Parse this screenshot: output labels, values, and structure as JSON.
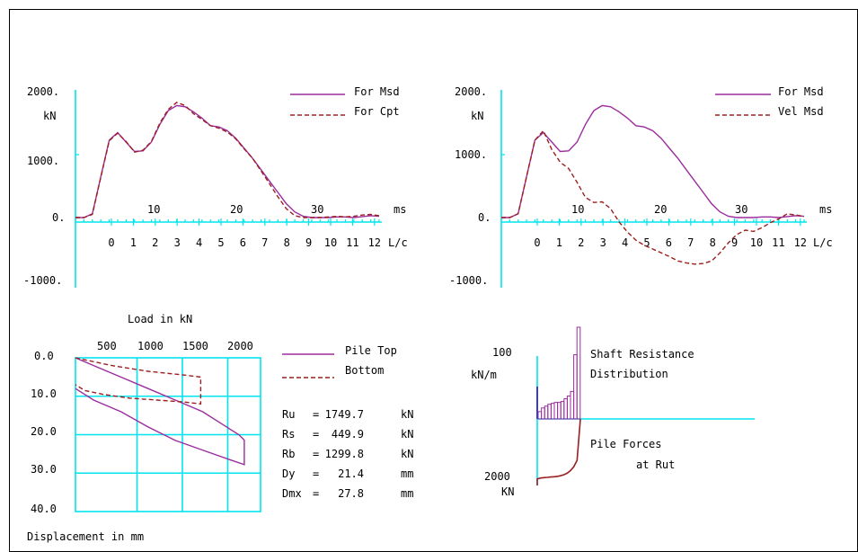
{
  "colors": {
    "axis": "#00e5ee",
    "measured": "#9b2c9e",
    "computed": "#9a1f1f"
  },
  "chart_data": [
    {
      "type": "line",
      "title": "",
      "ylabel": "kN",
      "xlabel": "ms",
      "y_ticks": [
        "2000.",
        "1000.",
        "0.",
        "-1000."
      ],
      "ylim": [
        -1000,
        2000
      ],
      "xlim": [
        0,
        36
      ],
      "time_ticks": [
        "10",
        "20",
        "30"
      ],
      "lc_ticks": [
        "0",
        "1",
        "2",
        "3",
        "4",
        "5",
        "6",
        "7",
        "8",
        "9",
        "10",
        "11",
        "12"
      ],
      "lc_unit": "L/c",
      "series": [
        {
          "name": "For  Msd",
          "style": "solid",
          "x": [
            0,
            1,
            2,
            3,
            4,
            5,
            6,
            7,
            8,
            9,
            10,
            11,
            12,
            13,
            14,
            15,
            16,
            17,
            18,
            19,
            20,
            21,
            22,
            23,
            24,
            25,
            26,
            27,
            28,
            29,
            30,
            31,
            32,
            33,
            34,
            35,
            36
          ],
          "y": [
            0,
            0,
            60,
            650,
            1230,
            1350,
            1200,
            1050,
            1060,
            1200,
            1480,
            1700,
            1780,
            1760,
            1680,
            1580,
            1460,
            1440,
            1380,
            1260,
            1100,
            940,
            760,
            580,
            400,
            220,
            90,
            20,
            0,
            0,
            0,
            10,
            10,
            0,
            15,
            30,
            20
          ]
        },
        {
          "name": "For  Cpt",
          "style": "dashed",
          "x": [
            0,
            1,
            2,
            3,
            4,
            5,
            6,
            7,
            8,
            9,
            10,
            11,
            12,
            13,
            14,
            15,
            16,
            17,
            18,
            19,
            20,
            21,
            22,
            23,
            24,
            25,
            26,
            27,
            28,
            29,
            30,
            31,
            32,
            33,
            34,
            35,
            36
          ],
          "y": [
            0,
            0,
            50,
            640,
            1220,
            1340,
            1210,
            1040,
            1070,
            1210,
            1500,
            1720,
            1830,
            1780,
            1650,
            1560,
            1460,
            1420,
            1360,
            1250,
            1090,
            940,
            740,
            540,
            330,
            140,
            30,
            0,
            0,
            0,
            10,
            20,
            10,
            20,
            40,
            50,
            30
          ]
        }
      ]
    },
    {
      "type": "line",
      "title": "",
      "ylabel": "kN",
      "xlabel": "ms",
      "y_ticks": [
        "2000.",
        "1000.",
        "0.",
        "-1000."
      ],
      "ylim": [
        -1000,
        2000
      ],
      "xlim": [
        0,
        36
      ],
      "time_ticks": [
        "10",
        "20",
        "30"
      ],
      "lc_ticks": [
        "0",
        "1",
        "2",
        "3",
        "4",
        "5",
        "6",
        "7",
        "8",
        "9",
        "10",
        "11",
        "12"
      ],
      "lc_unit": "L/c",
      "series": [
        {
          "name": "For  Msd",
          "style": "solid",
          "x": [
            0,
            1,
            2,
            3,
            4,
            5,
            6,
            7,
            8,
            9,
            10,
            11,
            12,
            13,
            14,
            15,
            16,
            17,
            18,
            19,
            20,
            21,
            22,
            23,
            24,
            25,
            26,
            27,
            28,
            29,
            30,
            31,
            32,
            33,
            34,
            35,
            36
          ],
          "y": [
            0,
            0,
            60,
            650,
            1230,
            1350,
            1200,
            1050,
            1060,
            1200,
            1480,
            1700,
            1780,
            1760,
            1680,
            1580,
            1460,
            1440,
            1380,
            1260,
            1100,
            940,
            760,
            580,
            400,
            220,
            90,
            20,
            0,
            0,
            0,
            10,
            10,
            0,
            15,
            30,
            20
          ]
        },
        {
          "name": "Vel  Msd",
          "style": "dashed",
          "x": [
            0,
            1,
            2,
            3,
            4,
            5,
            6,
            7,
            8,
            9,
            10,
            11,
            12,
            13,
            14,
            15,
            16,
            17,
            18,
            19,
            20,
            21,
            22,
            23,
            24,
            25,
            26,
            27,
            28,
            29,
            30,
            31,
            32,
            33,
            34,
            35,
            36
          ],
          "y": [
            0,
            0,
            60,
            650,
            1230,
            1380,
            1080,
            880,
            780,
            560,
            320,
            240,
            250,
            140,
            -70,
            -230,
            -360,
            -440,
            -500,
            -560,
            -620,
            -690,
            -720,
            -740,
            -730,
            -690,
            -560,
            -400,
            -270,
            -200,
            -220,
            -160,
            -80,
            -20,
            60,
            40,
            20
          ]
        }
      ]
    },
    {
      "type": "line",
      "title": "",
      "xlabel_top": "Load in   kN",
      "ylabel_bottom": "Displacement in    mm",
      "x_ticks": [
        "500",
        "1000",
        "1500",
        "2000"
      ],
      "y_ticks": [
        "0.0",
        "10.0",
        "20.0",
        "30.0",
        "40.0"
      ],
      "xlim": [
        0,
        2000
      ],
      "ylim": [
        0,
        40
      ],
      "series": [
        {
          "name": "Pile Top",
          "style": "solid",
          "x": [
            0,
            200,
            500,
            800,
            1100,
            1400,
            1600,
            1800,
            1860,
            1860,
            1700,
            1400,
            1100,
            800,
            500,
            200,
            0
          ],
          "y": [
            0,
            2,
            5,
            8,
            11,
            14,
            17,
            20,
            21.4,
            27.8,
            26.5,
            24,
            21.5,
            18,
            14,
            11,
            8
          ]
        },
        {
          "name": "Bottom",
          "style": "dashed",
          "x": [
            0,
            400,
            800,
            1200,
            1380,
            1380,
            1200,
            900,
            600,
            300,
            100,
            0
          ],
          "y": [
            0,
            2,
            3.5,
            4.5,
            5,
            12,
            11.5,
            11,
            10.5,
            9.5,
            8.5,
            7
          ]
        }
      ]
    },
    {
      "type": "bar",
      "title": "Shaft Resistance Distribution",
      "ylabel": "kN/m",
      "y_top_label": "100",
      "values": [
        8,
        12,
        14,
        16,
        17,
        18,
        18,
        19,
        22,
        25,
        30,
        70,
        100
      ],
      "lower_title_line1": "Pile Forces",
      "lower_title_line2": "at Rut",
      "lower_y_label": "2000",
      "lower_unit": "KN",
      "pile_force": [
        1880,
        1850,
        1840,
        1830,
        1820,
        1810,
        1800,
        1780,
        1750,
        1700,
        1620,
        1500,
        1300,
        0
      ]
    }
  ],
  "results": [
    {
      "label": "Ru",
      "eq": "=",
      "value": "1749.7",
      "unit": "kN"
    },
    {
      "label": "Rs",
      "eq": "=",
      "value": "449.9",
      "unit": "kN"
    },
    {
      "label": "Rb",
      "eq": "=",
      "value": "1299.8",
      "unit": "kN"
    },
    {
      "label": "Dy",
      "eq": "=",
      "value": "21.4",
      "unit": "mm"
    },
    {
      "label": "Dmx",
      "eq": "=",
      "value": "27.8",
      "unit": "mm"
    }
  ]
}
